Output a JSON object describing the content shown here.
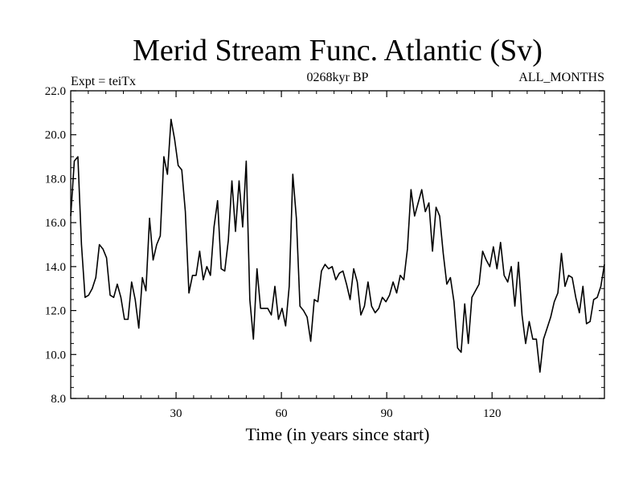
{
  "chart_data": {
    "type": "line",
    "title": "Merid Stream Func. Atlantic (Sv)",
    "subtitle_left": "Expt = teiTx",
    "subtitle_center": "0268kyr BP",
    "subtitle_right": "ALL_MONTHS",
    "xlabel": "Time (in years since start)",
    "ylabel": "",
    "xlim": [
      0,
      152
    ],
    "ylim": [
      8.0,
      22.0
    ],
    "x_ticks": [
      30,
      60,
      90,
      120
    ],
    "y_ticks": [
      8.0,
      10.0,
      12.0,
      14.0,
      16.0,
      18.0,
      20.0,
      22.0
    ],
    "grid": false,
    "series": [
      {
        "values": [
          16.3,
          18.8,
          19.0,
          15.0,
          12.6,
          12.7,
          13.0,
          13.5,
          15.0,
          14.8,
          14.4,
          12.7,
          12.6,
          13.2,
          12.6,
          11.6,
          11.6,
          13.3,
          12.5,
          11.2,
          13.5,
          12.9,
          16.2,
          14.3,
          15.0,
          15.4,
          19.0,
          18.2,
          20.7,
          19.8,
          18.6,
          18.4,
          16.5,
          12.8,
          13.6,
          13.6,
          14.7,
          13.4,
          14.0,
          13.6,
          15.8,
          17.0,
          13.9,
          13.8,
          15.2,
          17.9,
          15.6,
          17.9,
          15.8,
          18.8,
          12.5,
          10.7,
          13.9,
          12.1,
          12.1,
          12.1,
          11.8,
          13.1,
          11.6,
          12.1,
          11.3,
          13.1,
          18.2,
          16.2,
          12.2,
          12.0,
          11.7,
          10.6,
          12.5,
          12.4,
          13.8,
          14.1,
          13.9,
          14.0,
          13.4,
          13.7,
          13.8,
          13.2,
          12.5,
          13.9,
          13.3,
          11.8,
          12.2,
          13.3,
          12.2,
          11.9,
          12.1,
          12.6,
          12.4,
          12.7,
          13.3,
          12.8,
          13.6,
          13.4,
          14.8,
          17.5,
          16.3,
          16.9,
          17.5,
          16.5,
          16.9,
          14.7,
          16.7,
          16.3,
          14.6,
          13.2,
          13.5,
          12.4,
          10.3,
          10.1,
          12.3,
          10.5,
          12.6,
          12.9,
          13.2,
          14.7,
          14.3,
          14.0,
          14.9,
          13.9,
          15.1,
          13.6,
          13.3,
          14.0,
          12.2,
          14.2,
          11.8,
          10.5,
          11.5,
          10.7,
          10.7,
          9.2,
          10.7,
          11.2,
          11.7,
          12.4,
          12.8,
          14.6,
          13.1,
          13.6,
          13.5,
          12.6,
          11.9,
          13.1,
          11.4,
          11.5,
          12.5,
          12.6,
          13.1,
          14.1
        ]
      }
    ]
  }
}
